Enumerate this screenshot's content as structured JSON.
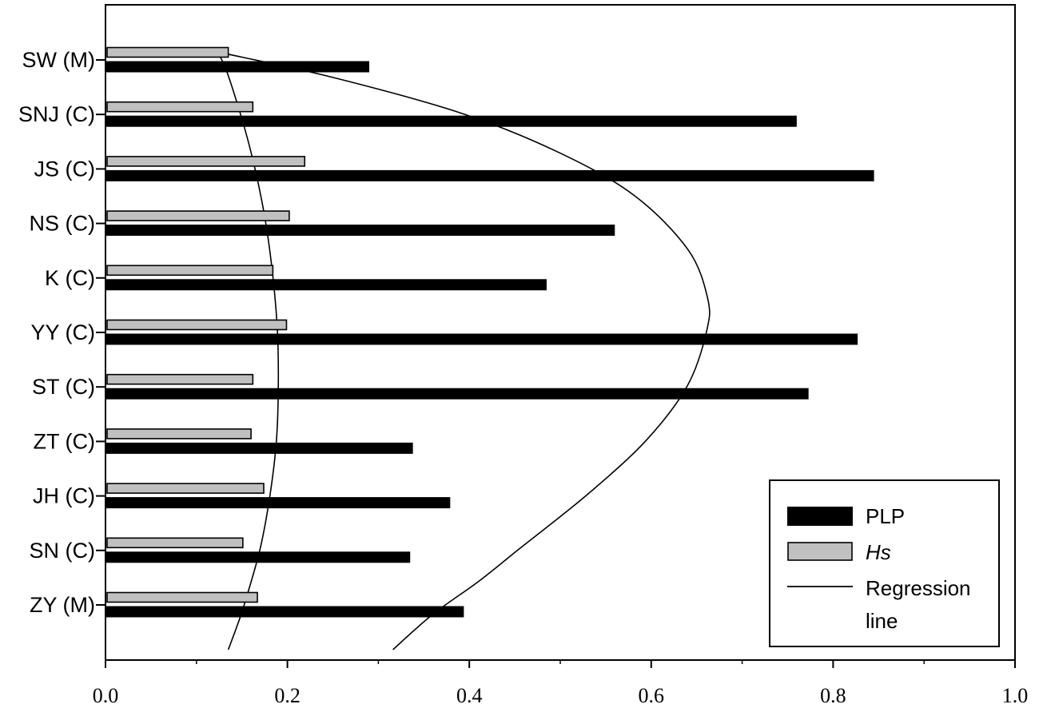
{
  "chart_data": {
    "type": "bar",
    "orientation": "horizontal",
    "title": "",
    "xlabel": "",
    "ylabel": "",
    "xlim": [
      0.0,
      1.0
    ],
    "x_ticks": [
      "0.0",
      "0.2",
      "0.4",
      "0.6",
      "0.8",
      "1.0"
    ],
    "grid": false,
    "legend_placement": "bottom-right",
    "categories": [
      "SW (M)",
      "SNJ (C)",
      "JS (C)",
      "NS (C)",
      "K (C)",
      "YY (C)",
      "ST (C)",
      "ZT (C)",
      "JH (C)",
      "SN (C)",
      "ZY (M)"
    ],
    "series": [
      {
        "name": "PLP",
        "color": "#000000",
        "values": [
          0.29,
          0.76,
          0.845,
          0.56,
          0.485,
          0.827,
          0.773,
          0.338,
          0.379,
          0.335,
          0.394
        ]
      },
      {
        "name": "Hs",
        "color": "#c0c0c0",
        "values": [
          0.135,
          0.162,
          0.219,
          0.202,
          0.184,
          0.199,
          0.162,
          0.16,
          0.174,
          0.151,
          0.167
        ]
      }
    ],
    "regression_lines": [
      {
        "name": "Regression line",
        "points": [
          [
            0.11,
            -0.1
          ],
          [
            0.127,
            0.0
          ],
          [
            0.148,
            1.0
          ],
          [
            0.164,
            2.0
          ],
          [
            0.176,
            3.0
          ],
          [
            0.184,
            4.0
          ],
          [
            0.189,
            5.0
          ],
          [
            0.19,
            6.0
          ],
          [
            0.188,
            7.0
          ],
          [
            0.181,
            8.0
          ],
          [
            0.17,
            9.0
          ],
          [
            0.153,
            10.0
          ],
          [
            0.145,
            10.4
          ],
          [
            0.135,
            10.85
          ]
        ]
      },
      {
        "name": "Regression line",
        "points": [
          [
            0.128,
            -0.1
          ],
          [
            0.25,
            0.35
          ],
          [
            0.39,
            1.0
          ],
          [
            0.495,
            1.7
          ],
          [
            0.58,
            2.5
          ],
          [
            0.64,
            3.5
          ],
          [
            0.662,
            4.4
          ],
          [
            0.661,
            5.0
          ],
          [
            0.64,
            6.0
          ],
          [
            0.595,
            7.0
          ],
          [
            0.53,
            8.0
          ],
          [
            0.455,
            9.0
          ],
          [
            0.41,
            9.6
          ],
          [
            0.36,
            10.2
          ],
          [
            0.316,
            10.85
          ]
        ]
      }
    ],
    "legend": [
      {
        "label": "PLP",
        "italic": false,
        "symbol": "black-bar"
      },
      {
        "label": "Hs",
        "italic": true,
        "symbol": "gray-bar"
      },
      {
        "label": "Regression",
        "italic": false,
        "symbol": "line"
      },
      {
        "label": "line",
        "italic": false,
        "symbol": "none"
      }
    ]
  }
}
